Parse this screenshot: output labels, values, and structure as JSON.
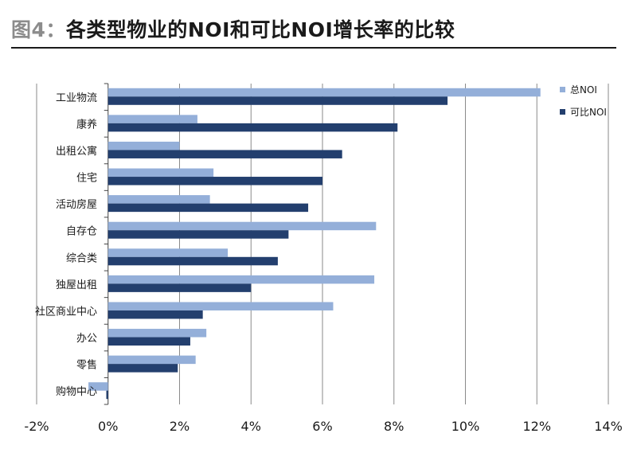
{
  "header": {
    "figure_label": "图4：",
    "title_text": "各类型物业的NOI和可比NOI增长率的比较"
  },
  "chart_data": {
    "type": "bar",
    "orientation": "horizontal",
    "title": "图4：各类型物业的NOI和可比NOI增长率的比较",
    "categories": [
      "工业物流",
      "康养",
      "出租公寓",
      "住宅",
      "活动房屋",
      "自存仓",
      "综合类",
      "独屋出租",
      "社区商业中心",
      "办公",
      "零售",
      "购物中心"
    ],
    "series": [
      {
        "name": "总NOI",
        "color": "#94afd9",
        "values": [
          12.1,
          2.5,
          2.0,
          2.95,
          2.85,
          7.5,
          3.35,
          7.45,
          6.3,
          2.75,
          2.45,
          -0.55
        ]
      },
      {
        "name": "可比NOI",
        "color": "#233f6e",
        "values": [
          9.5,
          8.1,
          6.55,
          6.0,
          5.6,
          5.05,
          4.75,
          4.0,
          2.65,
          2.3,
          1.95,
          -0.05
        ]
      }
    ],
    "x_ticks": [
      "-2%",
      "0%",
      "2%",
      "4%",
      "6%",
      "8%",
      "10%",
      "12%",
      "14%"
    ],
    "xlim": [
      -2,
      14
    ],
    "grid": "vertical",
    "legend_position": "top-right"
  }
}
